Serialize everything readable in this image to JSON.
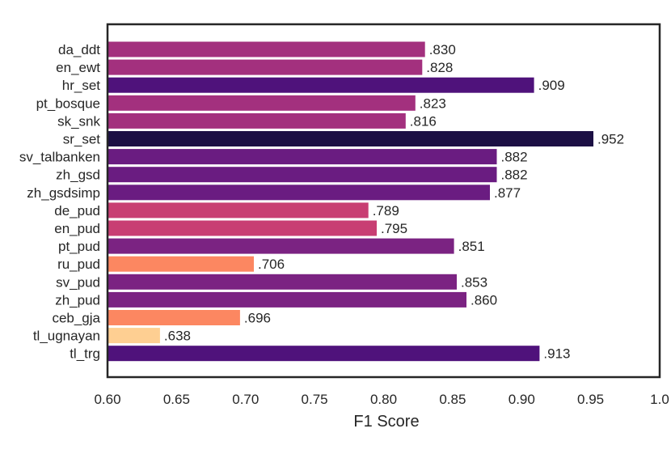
{
  "chart_data": {
    "type": "bar",
    "orientation": "horizontal",
    "title": "",
    "xlabel": "F1 Score",
    "ylabel": "",
    "xlim": [
      0.6,
      1.0
    ],
    "xticks": [
      0.6,
      0.65,
      0.7,
      0.75,
      0.8,
      0.85,
      0.9,
      0.95,
      1.0
    ],
    "xtick_labels": [
      "0.60",
      "0.65",
      "0.70",
      "0.75",
      "0.80",
      "0.85",
      "0.90",
      "0.95",
      "1.0"
    ],
    "grid": false,
    "categories": [
      "da_ddt",
      "en_ewt",
      "hr_set",
      "pt_bosque",
      "sk_snk",
      "sr_set",
      "sv_talbanken",
      "zh_gsd",
      "zh_gsdsimp",
      "de_pud",
      "en_pud",
      "pt_pud",
      "ru_pud",
      "sv_pud",
      "zh_pud",
      "ceb_gja",
      "tl_ugnayan",
      "tl_trg"
    ],
    "values": [
      0.83,
      0.828,
      0.909,
      0.823,
      0.816,
      0.952,
      0.882,
      0.882,
      0.877,
      0.789,
      0.795,
      0.851,
      0.706,
      0.853,
      0.86,
      0.696,
      0.638,
      0.913
    ],
    "value_labels": [
      ".830",
      ".828",
      ".909",
      ".823",
      ".816",
      ".952",
      ".882",
      ".882",
      ".877",
      ".789",
      ".795",
      ".851",
      ".706",
      ".853",
      ".860",
      ".696",
      ".638",
      ".913"
    ],
    "colors": [
      "#a3307e",
      "#a3307e",
      "#4f127b",
      "#a3307e",
      "#a3307e",
      "#1c1044",
      "#6a1c81",
      "#6a1c81",
      "#6a1c81",
      "#c83e73",
      "#c83e73",
      "#7b2382",
      "#fc8761",
      "#7b2382",
      "#7b2382",
      "#fc8761",
      "#fecf92",
      "#4f127b"
    ]
  }
}
